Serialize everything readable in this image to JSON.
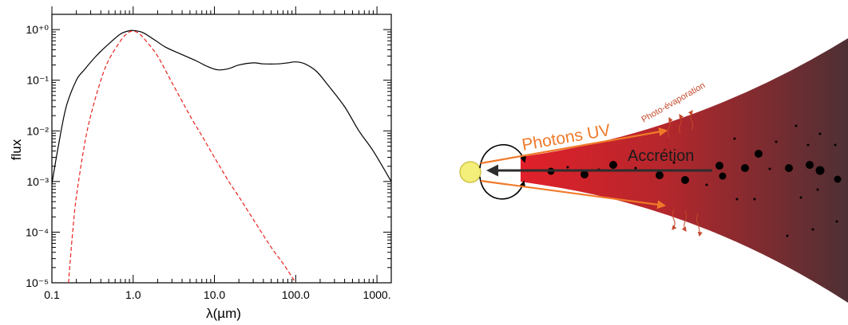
{
  "chart_data": {
    "type": "line",
    "xlabel": "λ(µm)",
    "ylabel": "flux",
    "xscale": "log",
    "yscale": "log",
    "xlim": [
      0.1,
      1500
    ],
    "ylim": [
      1e-05,
      2
    ],
    "x_tick_labels": [
      "0.1",
      "1.0",
      "10.0",
      "100.0",
      "1000."
    ],
    "y_tick_labels": [
      "10⁺⁰",
      "10⁻¹",
      "10⁻²",
      "10⁻³",
      "10⁻⁴",
      "10⁻⁵"
    ],
    "series": [
      {
        "style": "solid",
        "color": "#000000",
        "x": [
          0.1,
          0.12,
          0.15,
          0.2,
          0.25,
          0.35,
          0.5,
          0.7,
          0.9,
          1.0,
          1.3,
          1.8,
          2.5,
          4,
          6,
          8,
          11,
          15,
          20,
          30,
          40,
          60,
          80,
          100,
          130,
          180,
          250,
          400,
          600,
          900,
          1500
        ],
        "y": [
          0.0009,
          0.005,
          0.03,
          0.1,
          0.16,
          0.3,
          0.52,
          0.82,
          0.95,
          0.96,
          0.88,
          0.64,
          0.45,
          0.32,
          0.24,
          0.19,
          0.16,
          0.17,
          0.2,
          0.22,
          0.21,
          0.21,
          0.22,
          0.23,
          0.21,
          0.15,
          0.08,
          0.03,
          0.01,
          0.004,
          0.001
        ]
      },
      {
        "style": "dashed",
        "color": "#e8231f",
        "x": [
          0.16,
          0.18,
          0.2,
          0.25,
          0.3,
          0.4,
          0.5,
          0.7,
          0.85,
          1.0,
          1.2,
          1.5,
          2,
          3,
          5,
          7,
          10,
          15,
          20,
          30,
          50,
          70,
          100
        ],
        "y": [
          1e-05,
          0.0001,
          0.0005,
          0.005,
          0.02,
          0.1,
          0.25,
          0.6,
          0.85,
          0.93,
          0.82,
          0.55,
          0.3,
          0.09,
          0.02,
          0.008,
          0.003,
          0.001,
          0.0005,
          0.00018,
          5e-05,
          2.4e-05,
          1e-05
        ]
      }
    ]
  },
  "diagram": {
    "labels": {
      "photons": "Photons UV",
      "accretion": "Accrétion",
      "photoevap": "Photo-évaporation"
    },
    "colors": {
      "disk_inner": "#e2202a",
      "disk_outer": "#4e3034",
      "photon_arrow": "#f07a2a",
      "accretion_arrow": "#2d2d2d",
      "star_fill": "#f4ee7a",
      "evap_label": "#c4482a"
    }
  }
}
